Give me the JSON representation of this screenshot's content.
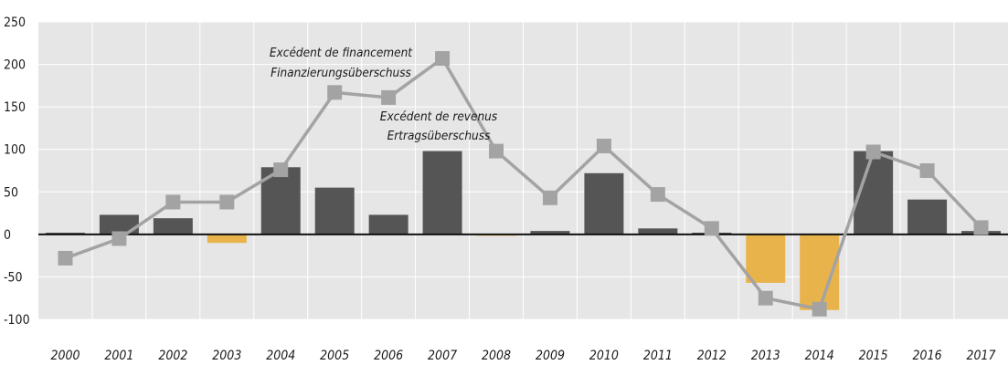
{
  "chart_data": {
    "type": "bar+line",
    "title": "",
    "xlabel": "",
    "ylabel": "",
    "categories": [
      "2000",
      "2001",
      "2002",
      "2003",
      "2004",
      "2005",
      "2006",
      "2007",
      "2008",
      "2009",
      "2010",
      "2011",
      "2012",
      "2013",
      "2014",
      "2015",
      "2016",
      "2017"
    ],
    "series": [
      {
        "type": "bar",
        "values": [
          2,
          23,
          19,
          -10,
          79,
          55,
          23,
          98,
          -1,
          4,
          72,
          7,
          2,
          -57,
          -89,
          98,
          41,
          4
        ]
      },
      {
        "type": "line",
        "values": [
          -28,
          -5,
          38,
          38,
          76,
          167,
          161,
          207,
          98,
          43,
          104,
          47,
          7,
          -75,
          -88,
          97,
          75,
          8
        ]
      }
    ],
    "ylim": [
      -100,
      250
    ],
    "yticks": [
      250,
      200,
      150,
      100,
      50,
      0,
      -50,
      -100
    ],
    "grid": true,
    "annotations": [
      {
        "lines": [
          "Excédent de financement",
          "Finanzierungsüberschuss"
        ],
        "target": "line"
      },
      {
        "lines": [
          "Excédent de revenus",
          "Ertragsüberschuss"
        ],
        "target": "bar"
      }
    ],
    "colors": {
      "plot_background": "#e6e6e6",
      "gridline": "#ffffff",
      "bar_positive": "#555555",
      "bar_negative": "#e8b34b",
      "line": "#a3a3a3",
      "marker": "#a3a3a3",
      "zero_axis": "#111111"
    }
  }
}
